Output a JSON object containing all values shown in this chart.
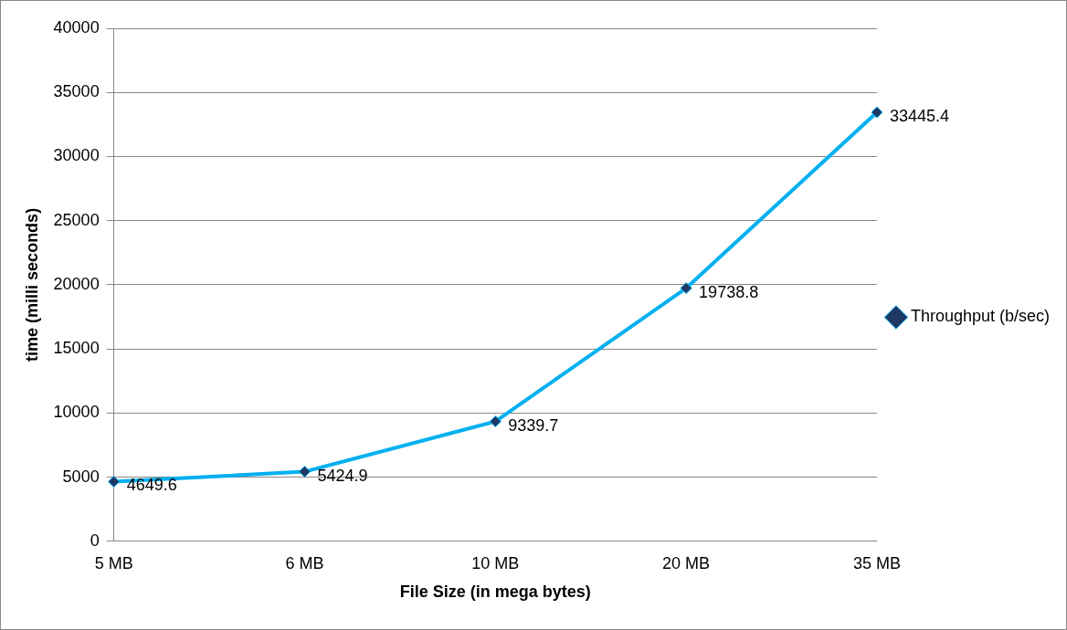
{
  "chart_data": {
    "type": "line",
    "xlabel": "File Size (in mega bytes)",
    "ylabel": "time (milli seconds)",
    "categories": [
      "5 MB",
      "6 MB",
      "10 MB",
      "20 MB",
      "35 MB"
    ],
    "series": [
      {
        "name": "Throughput (b/sec)",
        "color": "#00b0f0",
        "values": [
          4649.6,
          5424.9,
          9339.7,
          19738.8,
          33445.4
        ]
      }
    ],
    "ylim": [
      0,
      40000
    ],
    "yticks": [
      0,
      5000,
      10000,
      15000,
      20000,
      25000,
      30000,
      35000,
      40000
    ],
    "grid": "y",
    "legend": "right",
    "marker": "diamond",
    "line_style": "solid",
    "data_labels": true
  }
}
